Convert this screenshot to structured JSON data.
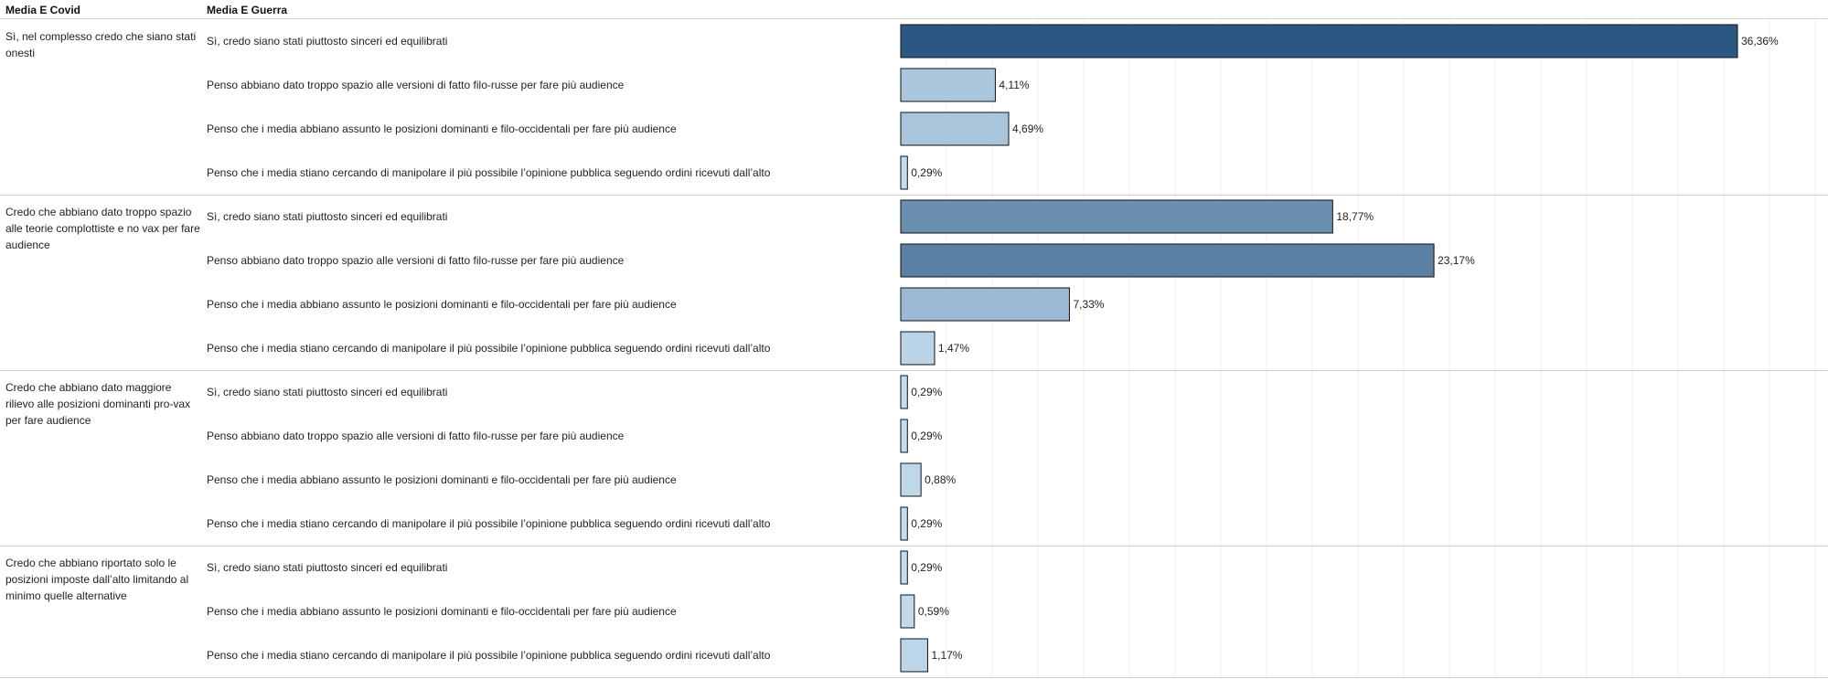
{
  "headers": {
    "covid": "Media E Covid",
    "guerra": "Media E Guerra"
  },
  "colors": {
    "scale": [
      "#c6dff0",
      "#2b5783"
    ],
    "bar_stroke": "#111111"
  },
  "chart_data": {
    "type": "bar",
    "orientation": "horizontal",
    "value_format": "percent, comma decimal",
    "xlim": [
      0,
      40
    ],
    "grid": true,
    "groups": [
      {
        "label": "Sì, nel complesso credo che siano stati onesti",
        "rows": [
          {
            "label": "Sì, credo siano stati piuttosto sinceri ed equilibrati",
            "value": 36.36,
            "value_label": "36,36%"
          },
          {
            "label": "Penso abbiano dato troppo spazio alle versioni di fatto filo-russe per fare più audience",
            "value": 4.11,
            "value_label": "4,11%"
          },
          {
            "label": "Penso che i media abbiano assunto le posizioni dominanti e filo-occidentali per fare più audience",
            "value": 4.69,
            "value_label": "4,69%"
          },
          {
            "label": "Penso che i media stiano cercando di manipolare il più possibile l’opinione pubblica seguendo ordini ricevuti dall’alto",
            "value": 0.29,
            "value_label": "0,29%"
          }
        ]
      },
      {
        "label": "Credo che abbiano dato troppo spazio alle teorie complottiste e no vax per fare audience",
        "rows": [
          {
            "label": "Sì, credo siano stati piuttosto sinceri ed equilibrati",
            "value": 18.77,
            "value_label": "18,77%"
          },
          {
            "label": "Penso abbiano dato troppo spazio alle versioni di fatto filo-russe per fare più audience",
            "value": 23.17,
            "value_label": "23,17%"
          },
          {
            "label": "Penso che i media abbiano assunto le posizioni dominanti e filo-occidentali per fare più audience",
            "value": 7.33,
            "value_label": "7,33%"
          },
          {
            "label": "Penso che i media stiano cercando di manipolare il più possibile l’opinione pubblica seguendo ordini ricevuti dall’alto",
            "value": 1.47,
            "value_label": "1,47%"
          }
        ]
      },
      {
        "label": "Credo che abbiano dato maggiore rilievo alle posizioni dominanti pro-vax per fare audience",
        "rows": [
          {
            "label": "Sì, credo siano stati piuttosto sinceri ed equilibrati",
            "value": 0.29,
            "value_label": "0,29%"
          },
          {
            "label": "Penso abbiano dato troppo spazio alle versioni di fatto filo-russe per fare più audience",
            "value": 0.29,
            "value_label": "0,29%"
          },
          {
            "label": "Penso che i media abbiano assunto le posizioni dominanti e filo-occidentali per fare più audience",
            "value": 0.88,
            "value_label": "0,88%"
          },
          {
            "label": "Penso che i media stiano cercando di manipolare il più possibile l’opinione pubblica seguendo ordini ricevuti dall’alto",
            "value": 0.29,
            "value_label": "0,29%"
          }
        ]
      },
      {
        "label": "Credo che abbiano riportato solo le posizioni imposte dall’alto limitando al minimo quelle alternative",
        "rows": [
          {
            "label": "Sì, credo siano stati piuttosto sinceri ed equilibrati",
            "value": 0.29,
            "value_label": "0,29%"
          },
          {
            "label": "Penso che i media abbiano assunto le posizioni dominanti e filo-occidentali per fare più audience",
            "value": 0.59,
            "value_label": "0,59%"
          },
          {
            "label": "Penso che i media stiano cercando di manipolare il più possibile l’opinione pubblica seguendo ordini ricevuti dall’alto",
            "value": 1.17,
            "value_label": "1,17%"
          }
        ]
      }
    ]
  }
}
